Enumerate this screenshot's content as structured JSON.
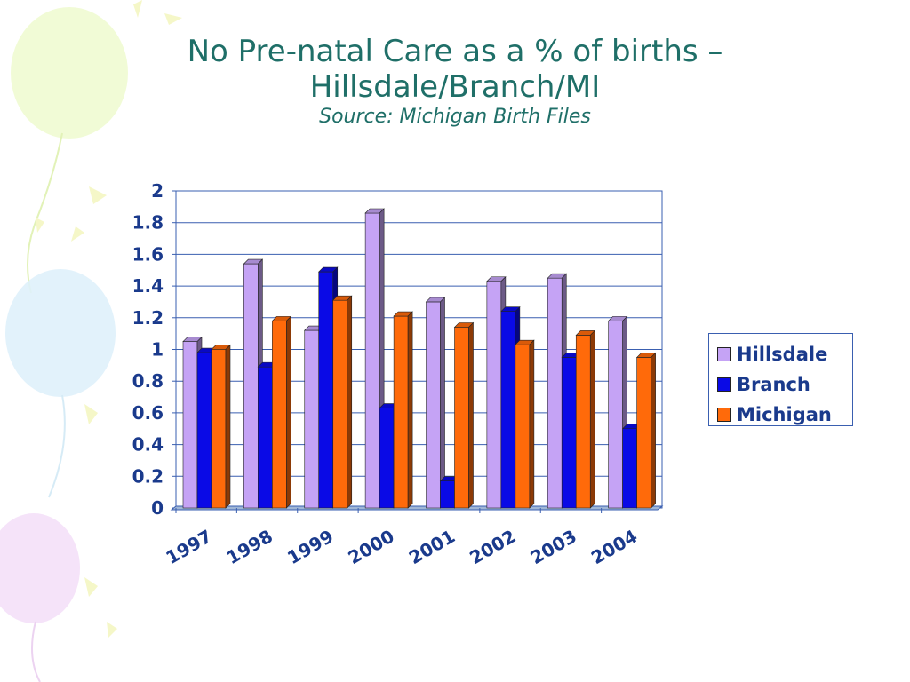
{
  "slide": {
    "title_line1": "No Pre-natal Care as a % of births –",
    "title_line2": "Hillsdale/Branch/MI",
    "subtitle": "Source: Michigan Birth Files"
  },
  "colors": {
    "title": "#1f6f68",
    "axis_text": "#1a3a8c",
    "grid": "#3a5fb0",
    "Hillsdale": "#c5a3f5",
    "Branch": "#0a0ae6",
    "Michigan": "#ff6a0a"
  },
  "chart_data": {
    "type": "bar",
    "title": "",
    "xlabel": "",
    "ylabel": "",
    "categories": [
      "1997",
      "1998",
      "1999",
      "2000",
      "2001",
      "2002",
      "2003",
      "2004"
    ],
    "series": [
      {
        "name": "Hillsdale",
        "values": [
          1.05,
          1.54,
          1.12,
          1.86,
          1.3,
          1.43,
          1.45,
          1.18
        ]
      },
      {
        "name": "Branch",
        "values": [
          0.98,
          0.89,
          1.49,
          0.63,
          0.17,
          1.24,
          0.95,
          0.5
        ]
      },
      {
        "name": "Michigan",
        "values": [
          1.0,
          1.18,
          1.31,
          1.21,
          1.14,
          1.03,
          1.09,
          0.95
        ]
      }
    ],
    "y_ticks": [
      "0",
      "0.2",
      "0.4",
      "0.6",
      "0.8",
      "1",
      "1.2",
      "1.4",
      "1.6",
      "1.8",
      "2"
    ],
    "ylim": [
      0,
      2
    ],
    "grid": true,
    "legend_position": "right",
    "style": "3d-clustered-column"
  }
}
